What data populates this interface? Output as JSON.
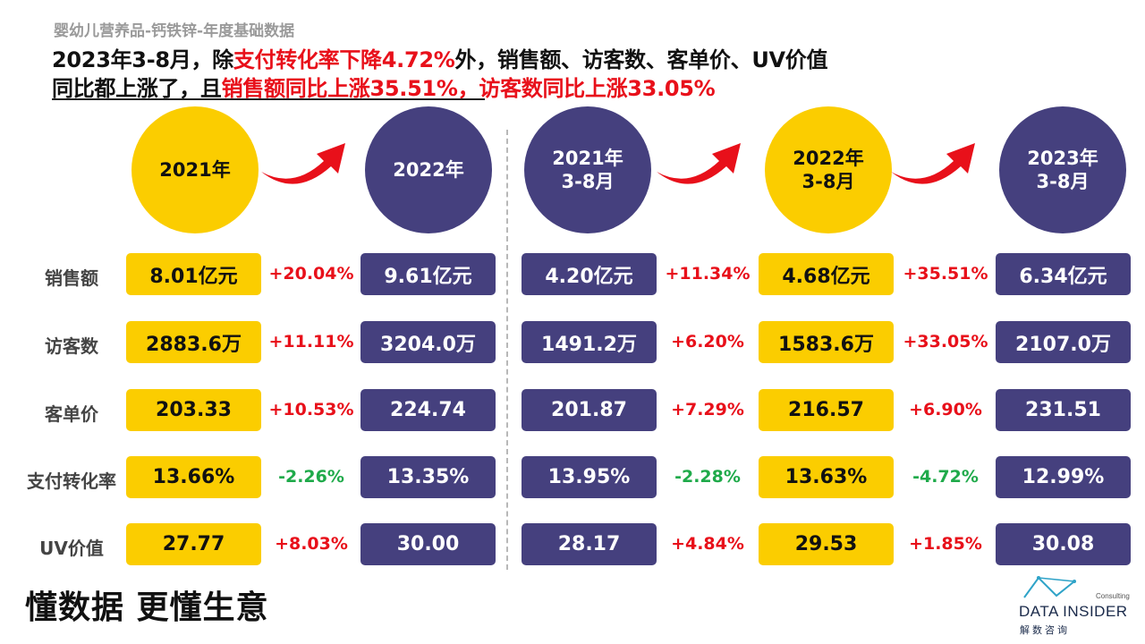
{
  "subtitle": "婴幼儿营养品-钙铁锌-年度基础数据",
  "headline": {
    "l1_a": "2023年3-8月，除",
    "l1_red": "支付转化率下降4.72%",
    "l1_b": "外，销售额、访客数、客单价、UV价值",
    "l2_a": "同比都上涨了，且",
    "l2_red": "销售额同比上涨35.51%，访客数同比上涨33.05%"
  },
  "columns": [
    {
      "label": "2021年",
      "color": "yellow"
    },
    {
      "label": "2022年",
      "color": "navy"
    },
    {
      "label": "2021年\n3-8月",
      "color": "navy"
    },
    {
      "label": "2022年\n3-8月",
      "color": "yellow"
    },
    {
      "label": "2023年\n3-8月",
      "color": "navy"
    }
  ],
  "rows": [
    {
      "label": "销售额",
      "v": [
        "8.01亿元",
        "9.61亿元",
        "4.20亿元",
        "4.68亿元",
        "6.34亿元"
      ],
      "p": [
        "+20.04%",
        "+11.34%",
        "+35.51%"
      ]
    },
    {
      "label": "访客数",
      "v": [
        "2883.6万",
        "3204.0万",
        "1491.2万",
        "1583.6万",
        "2107.0万"
      ],
      "p": [
        "+11.11%",
        "+6.20%",
        "+33.05%"
      ]
    },
    {
      "label": "客单价",
      "v": [
        "203.33",
        "224.74",
        "201.87",
        "216.57",
        "231.51"
      ],
      "p": [
        "+10.53%",
        "+7.29%",
        "+6.90%"
      ]
    },
    {
      "label": "支付转化率",
      "v": [
        "13.66%",
        "13.35%",
        "13.95%",
        "13.63%",
        "12.99%"
      ],
      "p": [
        "-2.26%",
        "-2.28%",
        "-4.72%"
      ]
    },
    {
      "label": "UV价值",
      "v": [
        "27.77",
        "30.00",
        "28.17",
        "29.53",
        "30.08"
      ],
      "p": [
        "+8.03%",
        "+4.84%",
        "+1.85%"
      ]
    }
  ],
  "colors": {
    "yellow": "#fbcd00",
    "navy": "#45407e",
    "up": "#e8101a",
    "down": "#1faa4a"
  },
  "slogan": "懂数据 更懂生意",
  "logo": {
    "consult": "Consulting",
    "brand": "DATA INSIDER",
    "cn": "解数咨询"
  }
}
